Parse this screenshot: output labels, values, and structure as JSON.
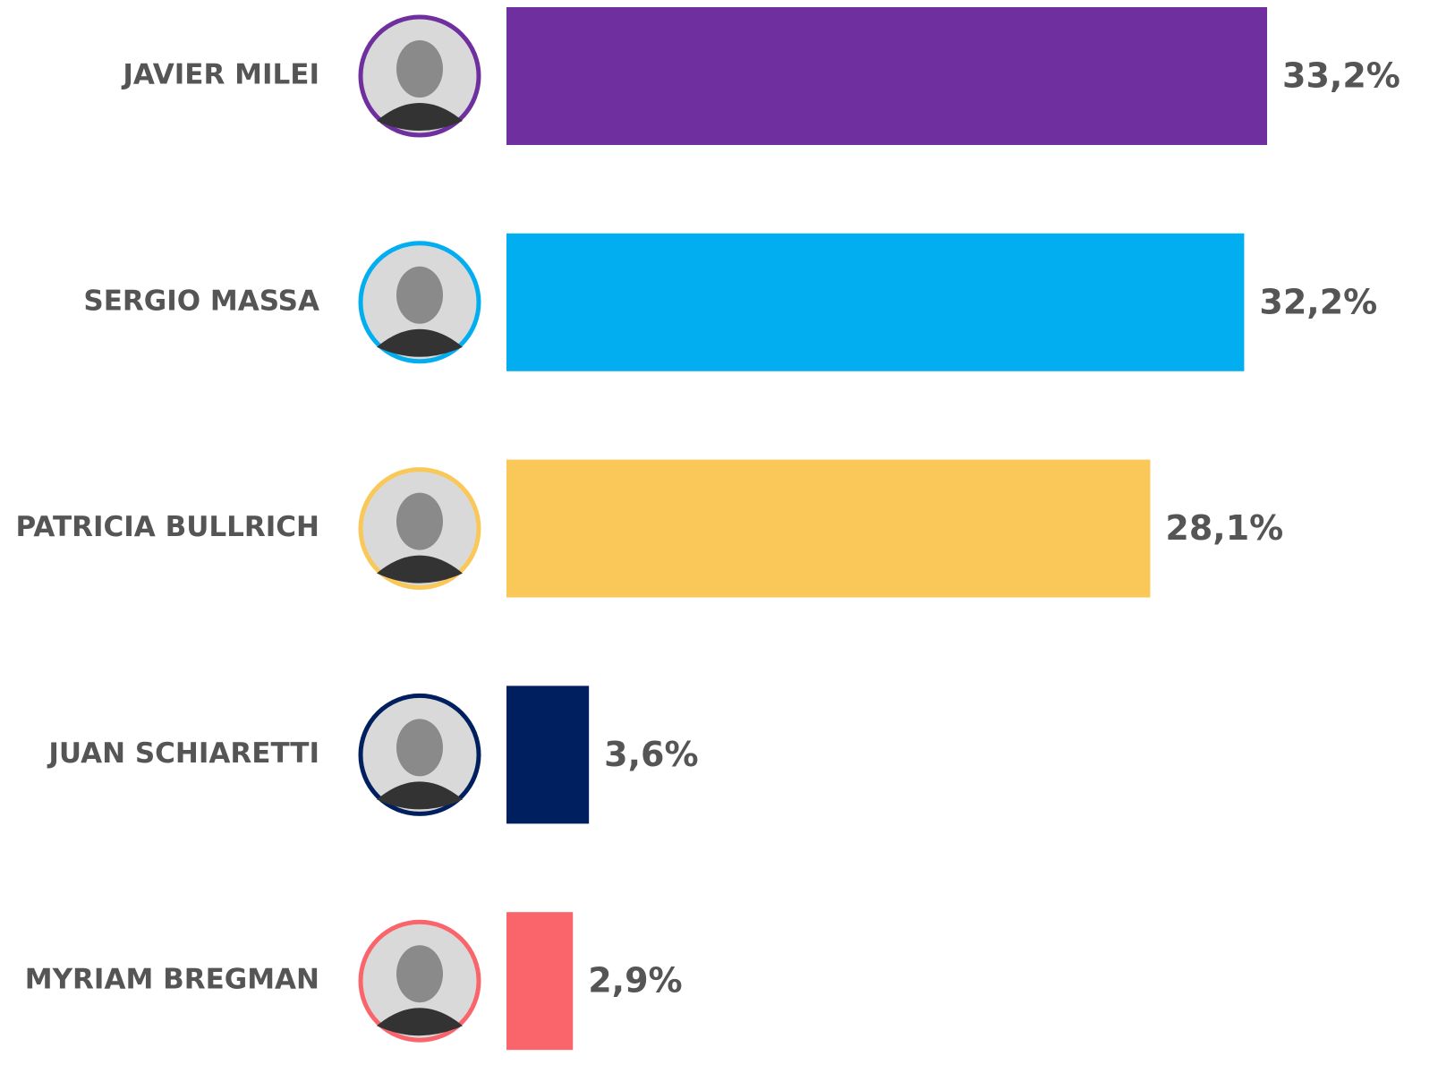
{
  "chart_data": {
    "type": "bar",
    "orientation": "horizontal",
    "categories": [
      "JAVIER MILEI",
      "SERGIO MASSA",
      "PATRICIA BULLRICH",
      "JUAN SCHIARETTI",
      "MYRIAM BREGMAN"
    ],
    "values": [
      33.2,
      32.2,
      28.1,
      3.6,
      2.9
    ],
    "value_labels": [
      "33,2%",
      "32,2%",
      "28,1%",
      "3,6%",
      "2,9%"
    ],
    "colors": [
      "#6f2f9f",
      "#02aef0",
      "#f9c858",
      "#001f5f",
      "#fa646b"
    ]
  }
}
